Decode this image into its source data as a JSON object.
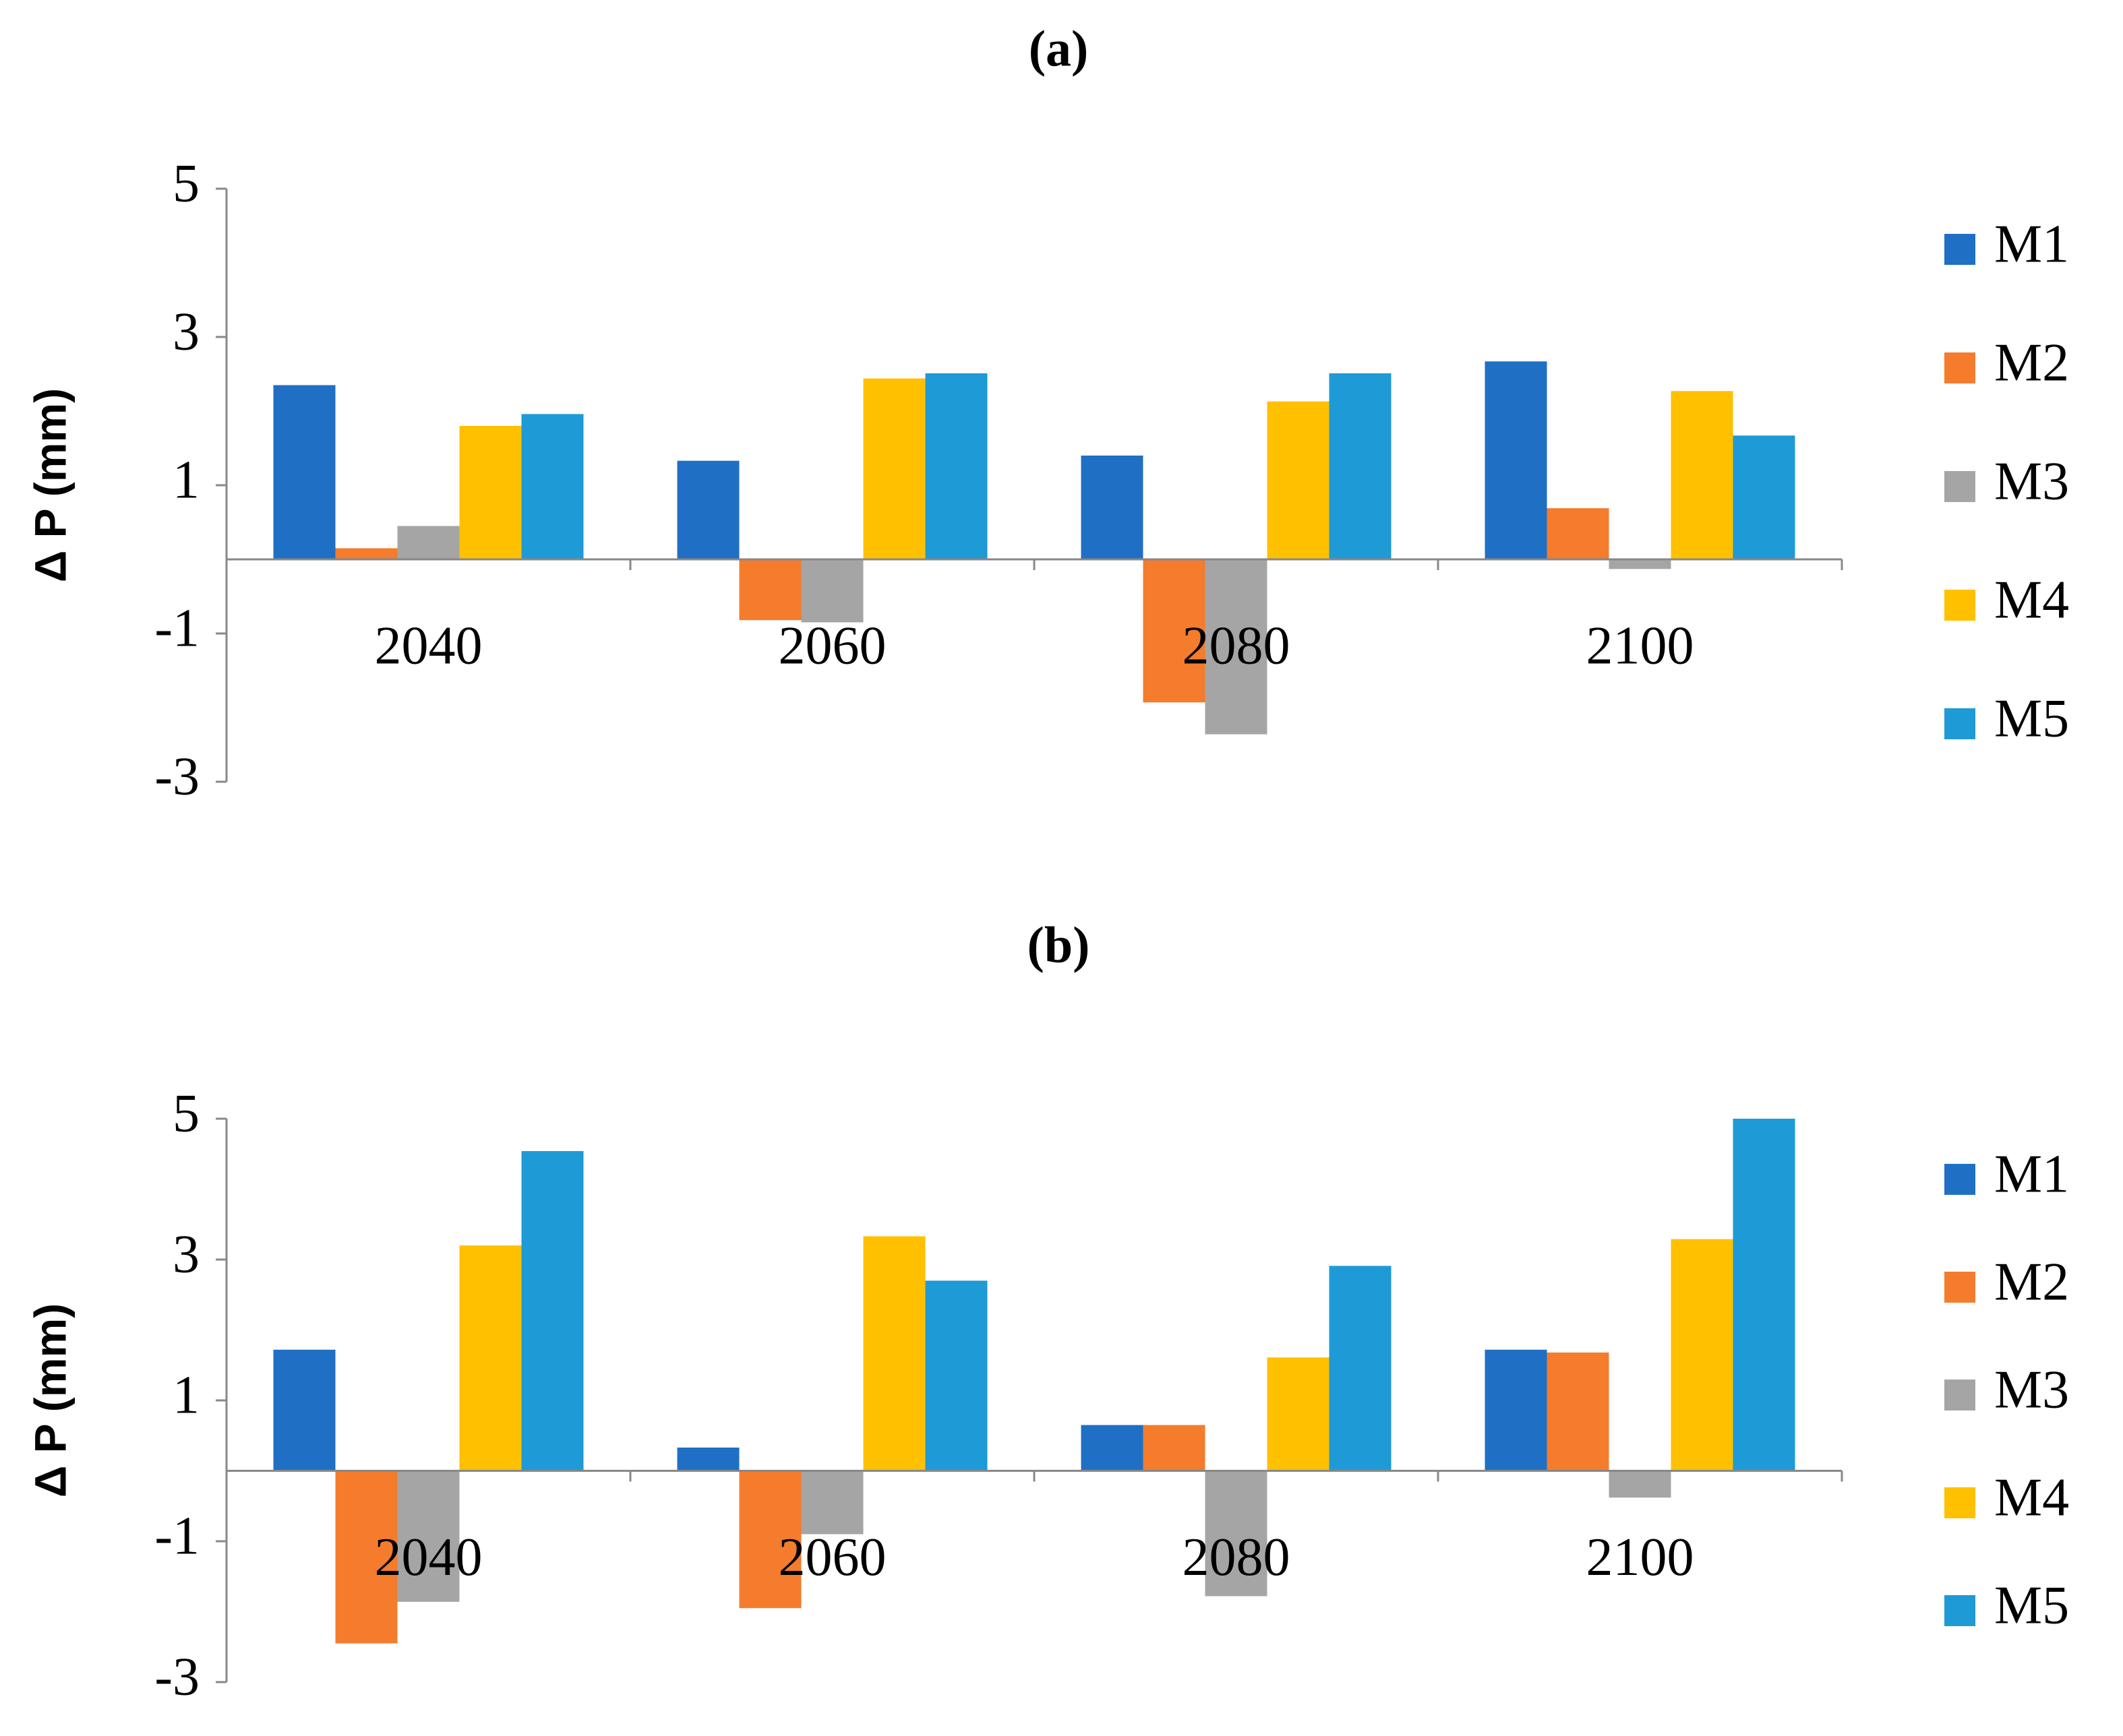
{
  "chart_data": [
    {
      "type": "bar",
      "title": "(a)",
      "y_label": "Δ P (mm)",
      "categories": [
        "2040",
        "2060",
        "2080",
        "2100"
      ],
      "ylim": [
        -3,
        5
      ],
      "yticks": [
        -3,
        -1,
        1,
        3,
        5
      ],
      "grid": false,
      "series": [
        {
          "name": "M1",
          "color": "#1f6fc5",
          "values": [
            2.35,
            1.33,
            1.4,
            2.67
          ]
        },
        {
          "name": "M2",
          "color": "#f47c2c",
          "values": [
            0.15,
            -0.82,
            -1.93,
            0.69
          ]
        },
        {
          "name": "M3",
          "color": "#a5a5a5",
          "values": [
            0.45,
            -0.85,
            -2.36,
            -0.13
          ]
        },
        {
          "name": "M4",
          "color": "#ffc000",
          "values": [
            1.8,
            2.44,
            2.13,
            2.27
          ]
        },
        {
          "name": "M5",
          "color": "#1e9ad6",
          "values": [
            1.96,
            2.51,
            2.51,
            1.67
          ]
        }
      ]
    },
    {
      "type": "bar",
      "title": "(b)",
      "y_label": "Δ P (mm)",
      "categories": [
        "2040",
        "2060",
        "2080",
        "2100"
      ],
      "ylim": [
        -3,
        5
      ],
      "yticks": [
        -3,
        -1,
        1,
        3,
        5
      ],
      "grid": false,
      "series": [
        {
          "name": "M1",
          "color": "#1f6fc5",
          "values": [
            1.72,
            0.33,
            0.65,
            1.72
          ]
        },
        {
          "name": "M2",
          "color": "#f47c2c",
          "values": [
            -2.45,
            -1.95,
            0.65,
            1.68
          ]
        },
        {
          "name": "M3",
          "color": "#a5a5a5",
          "values": [
            -1.86,
            -0.9,
            -1.78,
            -0.38
          ]
        },
        {
          "name": "M4",
          "color": "#ffc000",
          "values": [
            3.2,
            3.33,
            1.61,
            3.29
          ]
        },
        {
          "name": "M5",
          "color": "#1e9ad6",
          "values": [
            4.54,
            2.7,
            2.91,
            5.0
          ]
        }
      ]
    }
  ]
}
